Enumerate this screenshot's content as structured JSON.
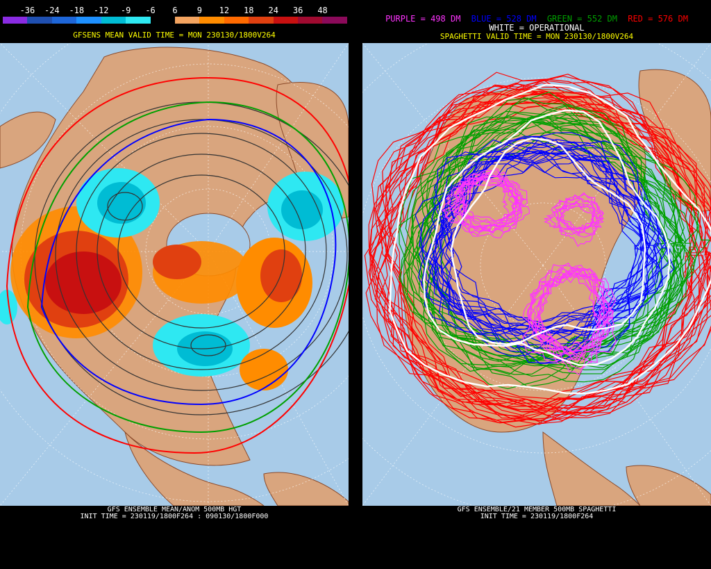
{
  "left": {
    "colorbar": {
      "labels": [
        "-36",
        "-24",
        "-18",
        "-12",
        "-9",
        "-6",
        "6",
        "9",
        "12",
        "18",
        "24",
        "36",
        "48"
      ],
      "colors": [
        "#8a2be2",
        "#1f4fb0",
        "#1e66d8",
        "#1e90ff",
        "#00bcd4",
        "#2ee8f2",
        "#000000",
        "#f4a460",
        "#ff8c00",
        "#ff6a00",
        "#e04010",
        "#c81010",
        "#a00a30",
        "#8b0a5a"
      ]
    },
    "header": "GFSENS MEAN VALID TIME = MON 230130/1800V264",
    "footer_line1": "GFS ENSEMBLE MEAN/ANOM 500MB HGT",
    "footer_line2": "INIT TIME = 230119/1800F264 : 090130/1800F000"
  },
  "right": {
    "legend": {
      "purple": "PURPLE = 498 DM",
      "blue": "BLUE = 528 DM",
      "green": "GREEN = 552 DM",
      "red": "RED = 576 DM",
      "white": "WHITE = OPERATIONAL"
    },
    "header": "SPAGHETTI VALID TIME = MON 230130/1800V264",
    "footer_line1": "GFS ENSEMBLE/21 MEMBER 500MB SPAGHETTI",
    "footer_line2": "INIT TIME = 230119/1800F264"
  },
  "colors": {
    "ocean": "#a8cbe8",
    "land": "#d9a57e",
    "border": "#8b4a2a",
    "purple": "#ff33ff",
    "blue": "#0000ff",
    "green": "#00a000",
    "red": "#ff0000",
    "white": "#ffffff",
    "header_yellow": "#ffff00"
  }
}
